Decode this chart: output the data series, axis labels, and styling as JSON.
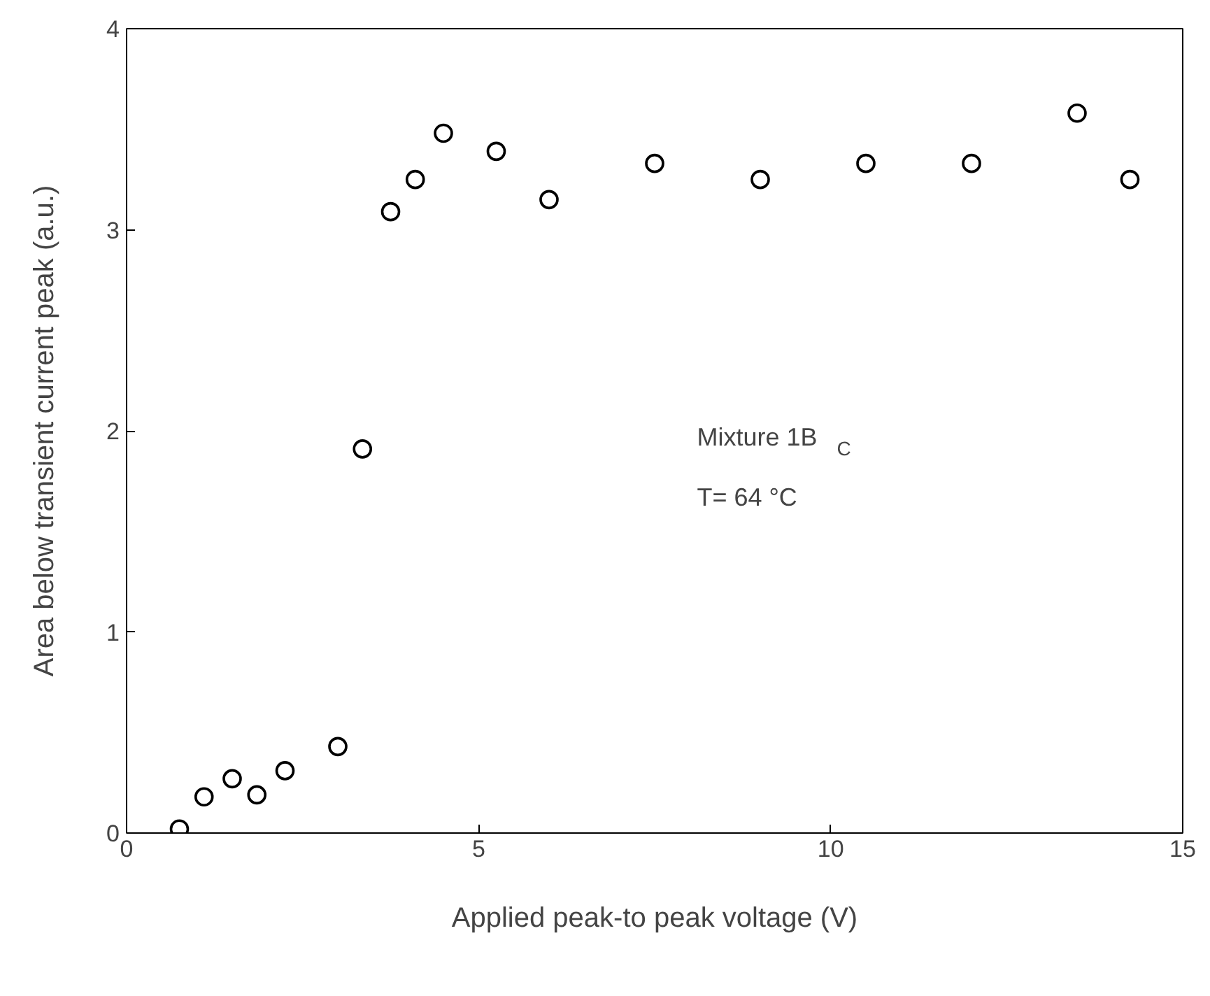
{
  "chart_data": {
    "type": "scatter",
    "xlabel": "Applied peak-to peak voltage (V)",
    "ylabel": "Area below transient current peak (a.u.)",
    "x": [
      0.75,
      1.1,
      1.5,
      1.85,
      2.25,
      3.0,
      3.35,
      3.75,
      4.1,
      4.5,
      5.25,
      6.0,
      7.5,
      9.0,
      10.5,
      12.0,
      13.5,
      14.25
    ],
    "series": [
      {
        "color": "#000000",
        "values": [
          0.02,
          0.18,
          0.27,
          0.19,
          0.31,
          0.43,
          1.91,
          3.09,
          3.25,
          3.48,
          3.39,
          3.15,
          3.33,
          3.25,
          3.33,
          3.33,
          3.58,
          3.25
        ]
      }
    ],
    "xlim": [
      0,
      15
    ],
    "ylim": [
      0,
      4
    ],
    "xticks": [
      0,
      5,
      10,
      15
    ],
    "yticks": [
      0,
      1,
      2,
      3,
      4
    ],
    "grid": false,
    "marker": "circle",
    "annotations": [
      "Mixture 1B$_{C}$",
      "T= 64 °C"
    ]
  }
}
